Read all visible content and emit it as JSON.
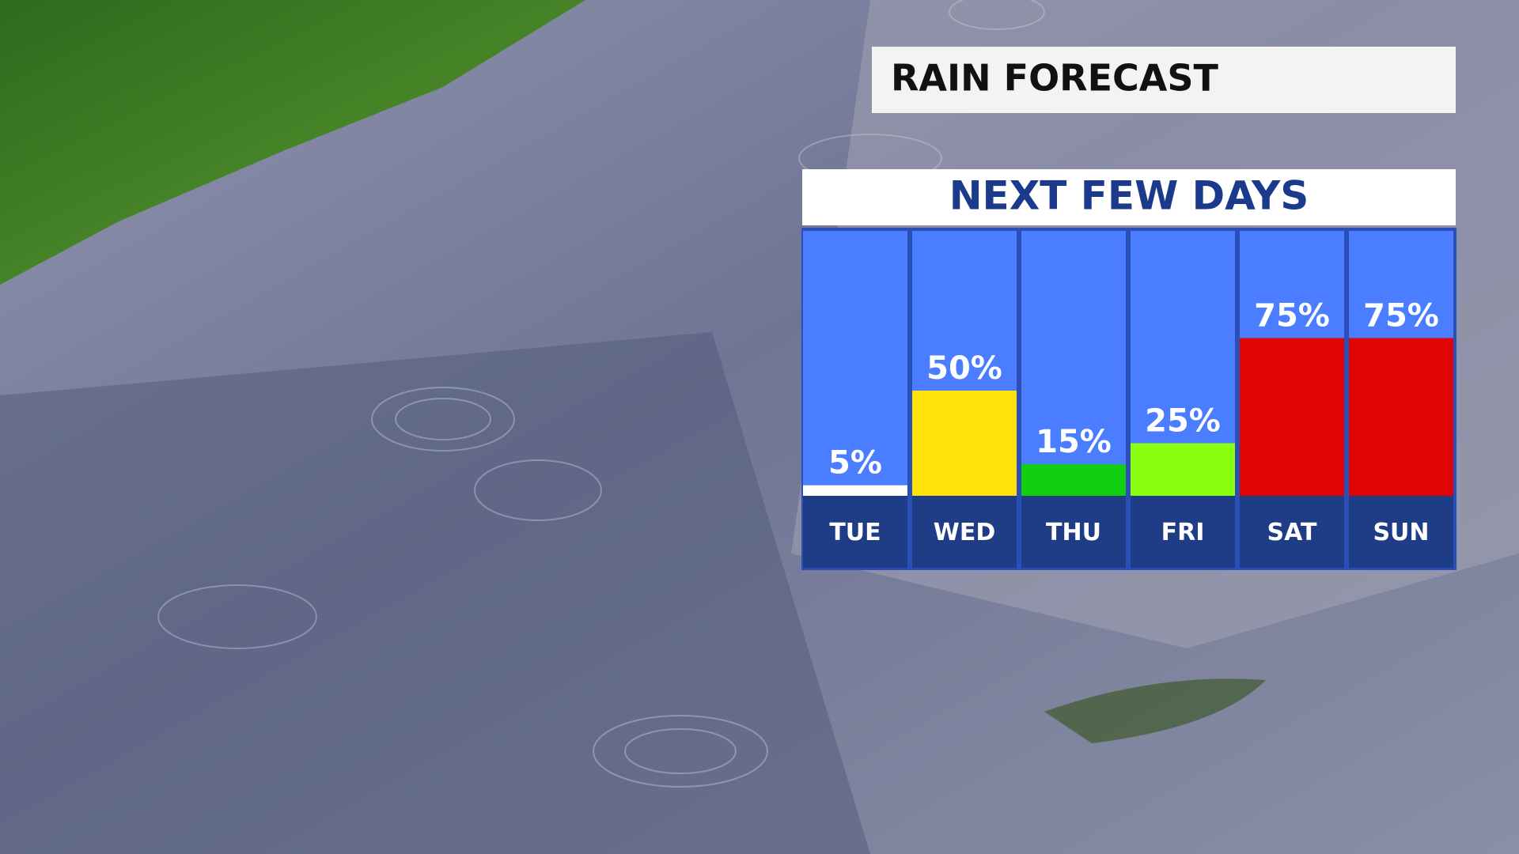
{
  "chart_data": {
    "type": "bar",
    "title": "RAIN FORECAST",
    "subtitle": "NEXT FEW DAYS",
    "categories": [
      "TUE",
      "WED",
      "THU",
      "FRI",
      "SAT",
      "SUN"
    ],
    "values": [
      5,
      50,
      15,
      25,
      75,
      75
    ],
    "value_labels": [
      "5%",
      "50%",
      "15%",
      "25%",
      "75%",
      "75%"
    ],
    "colors": [
      "#ffffff",
      "#ffe20c",
      "#12d010",
      "#8aff12",
      "#e00404",
      "#e00404"
    ]
  }
}
